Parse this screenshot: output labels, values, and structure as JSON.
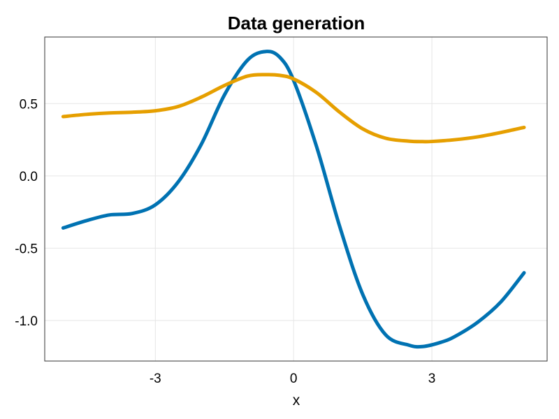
{
  "chart_data": {
    "type": "line",
    "title": "Data generation",
    "xlabel": "x",
    "ylabel": "",
    "xlim": [
      -5.4,
      5.5
    ],
    "ylim": [
      -1.28,
      0.96
    ],
    "xticks": [
      -3,
      0,
      3
    ],
    "xtick_labels": [
      "-3",
      "0",
      "3"
    ],
    "yticks": [
      0.5,
      0.0,
      -0.5,
      -1.0
    ],
    "ytick_labels": [
      "0.5",
      "0.0",
      "-0.5",
      "-1.0"
    ],
    "grid": true,
    "legend": "none",
    "series": [
      {
        "color": "#0072b2",
        "x": [
          -5.0,
          -4.5,
          -4.0,
          -3.5,
          -3.0,
          -2.5,
          -2.0,
          -1.5,
          -1.0,
          -0.6,
          -0.3,
          0.0,
          0.5,
          1.0,
          1.5,
          2.0,
          2.5,
          2.8,
          3.2,
          3.5,
          4.0,
          4.5,
          5.0
        ],
        "y": [
          -0.36,
          -0.31,
          -0.27,
          -0.26,
          -0.2,
          -0.04,
          0.22,
          0.56,
          0.8,
          0.86,
          0.82,
          0.66,
          0.2,
          -0.35,
          -0.82,
          -1.1,
          -1.17,
          -1.18,
          -1.15,
          -1.11,
          -1.01,
          -0.87,
          -0.67
        ]
      },
      {
        "color": "#e69f00",
        "x": [
          -5.0,
          -4.5,
          -4.0,
          -3.5,
          -3.0,
          -2.5,
          -2.0,
          -1.5,
          -1.0,
          -0.6,
          -0.3,
          0.0,
          0.5,
          1.0,
          1.5,
          2.0,
          2.5,
          2.8,
          3.0,
          3.5,
          4.0,
          4.5,
          5.0
        ],
        "y": [
          0.41,
          0.425,
          0.435,
          0.44,
          0.45,
          0.48,
          0.545,
          0.625,
          0.69,
          0.7,
          0.695,
          0.67,
          0.575,
          0.44,
          0.325,
          0.26,
          0.24,
          0.237,
          0.238,
          0.25,
          0.27,
          0.3,
          0.335
        ]
      }
    ]
  }
}
